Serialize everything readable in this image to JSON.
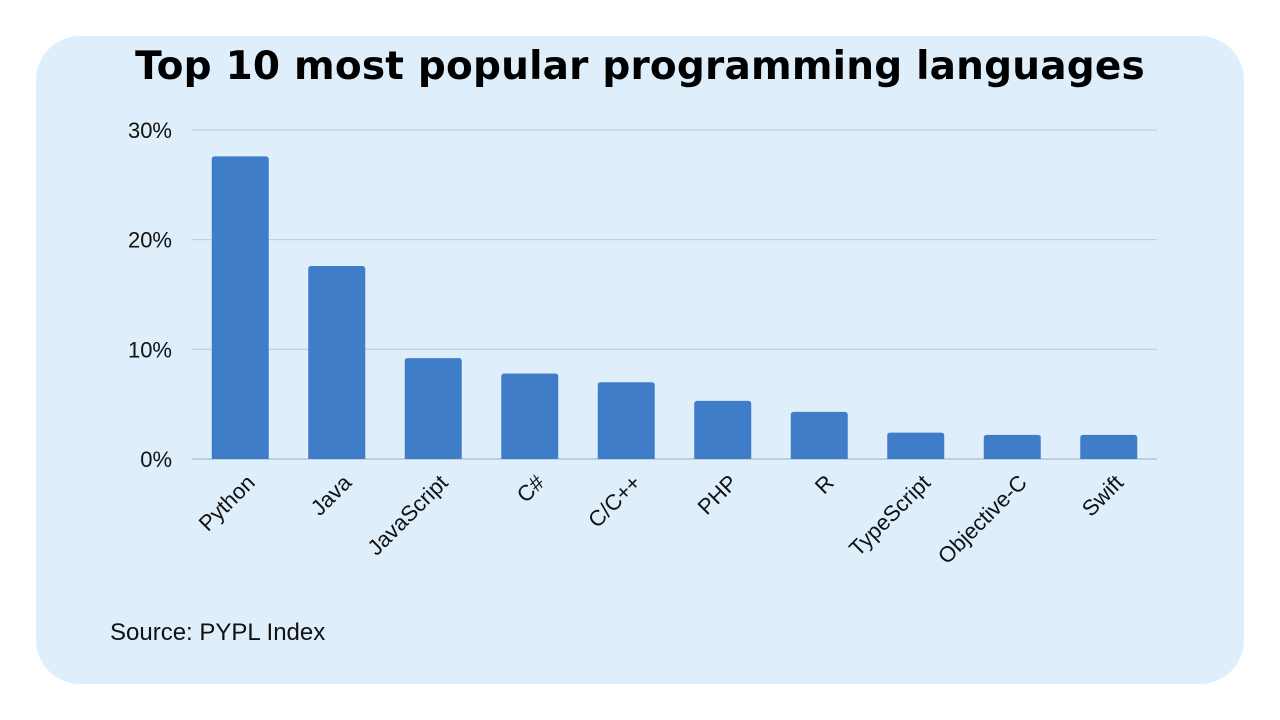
{
  "title": "Top 10 most popular programming languages",
  "source": "Source: PYPL Index",
  "chart_data": {
    "type": "bar",
    "title": "Top 10 most popular programming languages",
    "categories": [
      "Python",
      "Java",
      "JavaScript",
      "C#",
      "C/C++",
      "PHP",
      "R",
      "TypeScript",
      "Objective-C",
      "Swift"
    ],
    "values": [
      27.6,
      17.6,
      9.2,
      7.8,
      7.0,
      5.3,
      4.3,
      2.4,
      2.2,
      2.2
    ],
    "yticks": [
      "0%",
      "10%",
      "20%",
      "30%"
    ],
    "ylim": [
      0,
      30
    ],
    "xlabel": "",
    "ylabel": "",
    "grid": true,
    "legend": "none",
    "bar_color": "#3f7dc9",
    "grid_color": "#b9cddd"
  }
}
